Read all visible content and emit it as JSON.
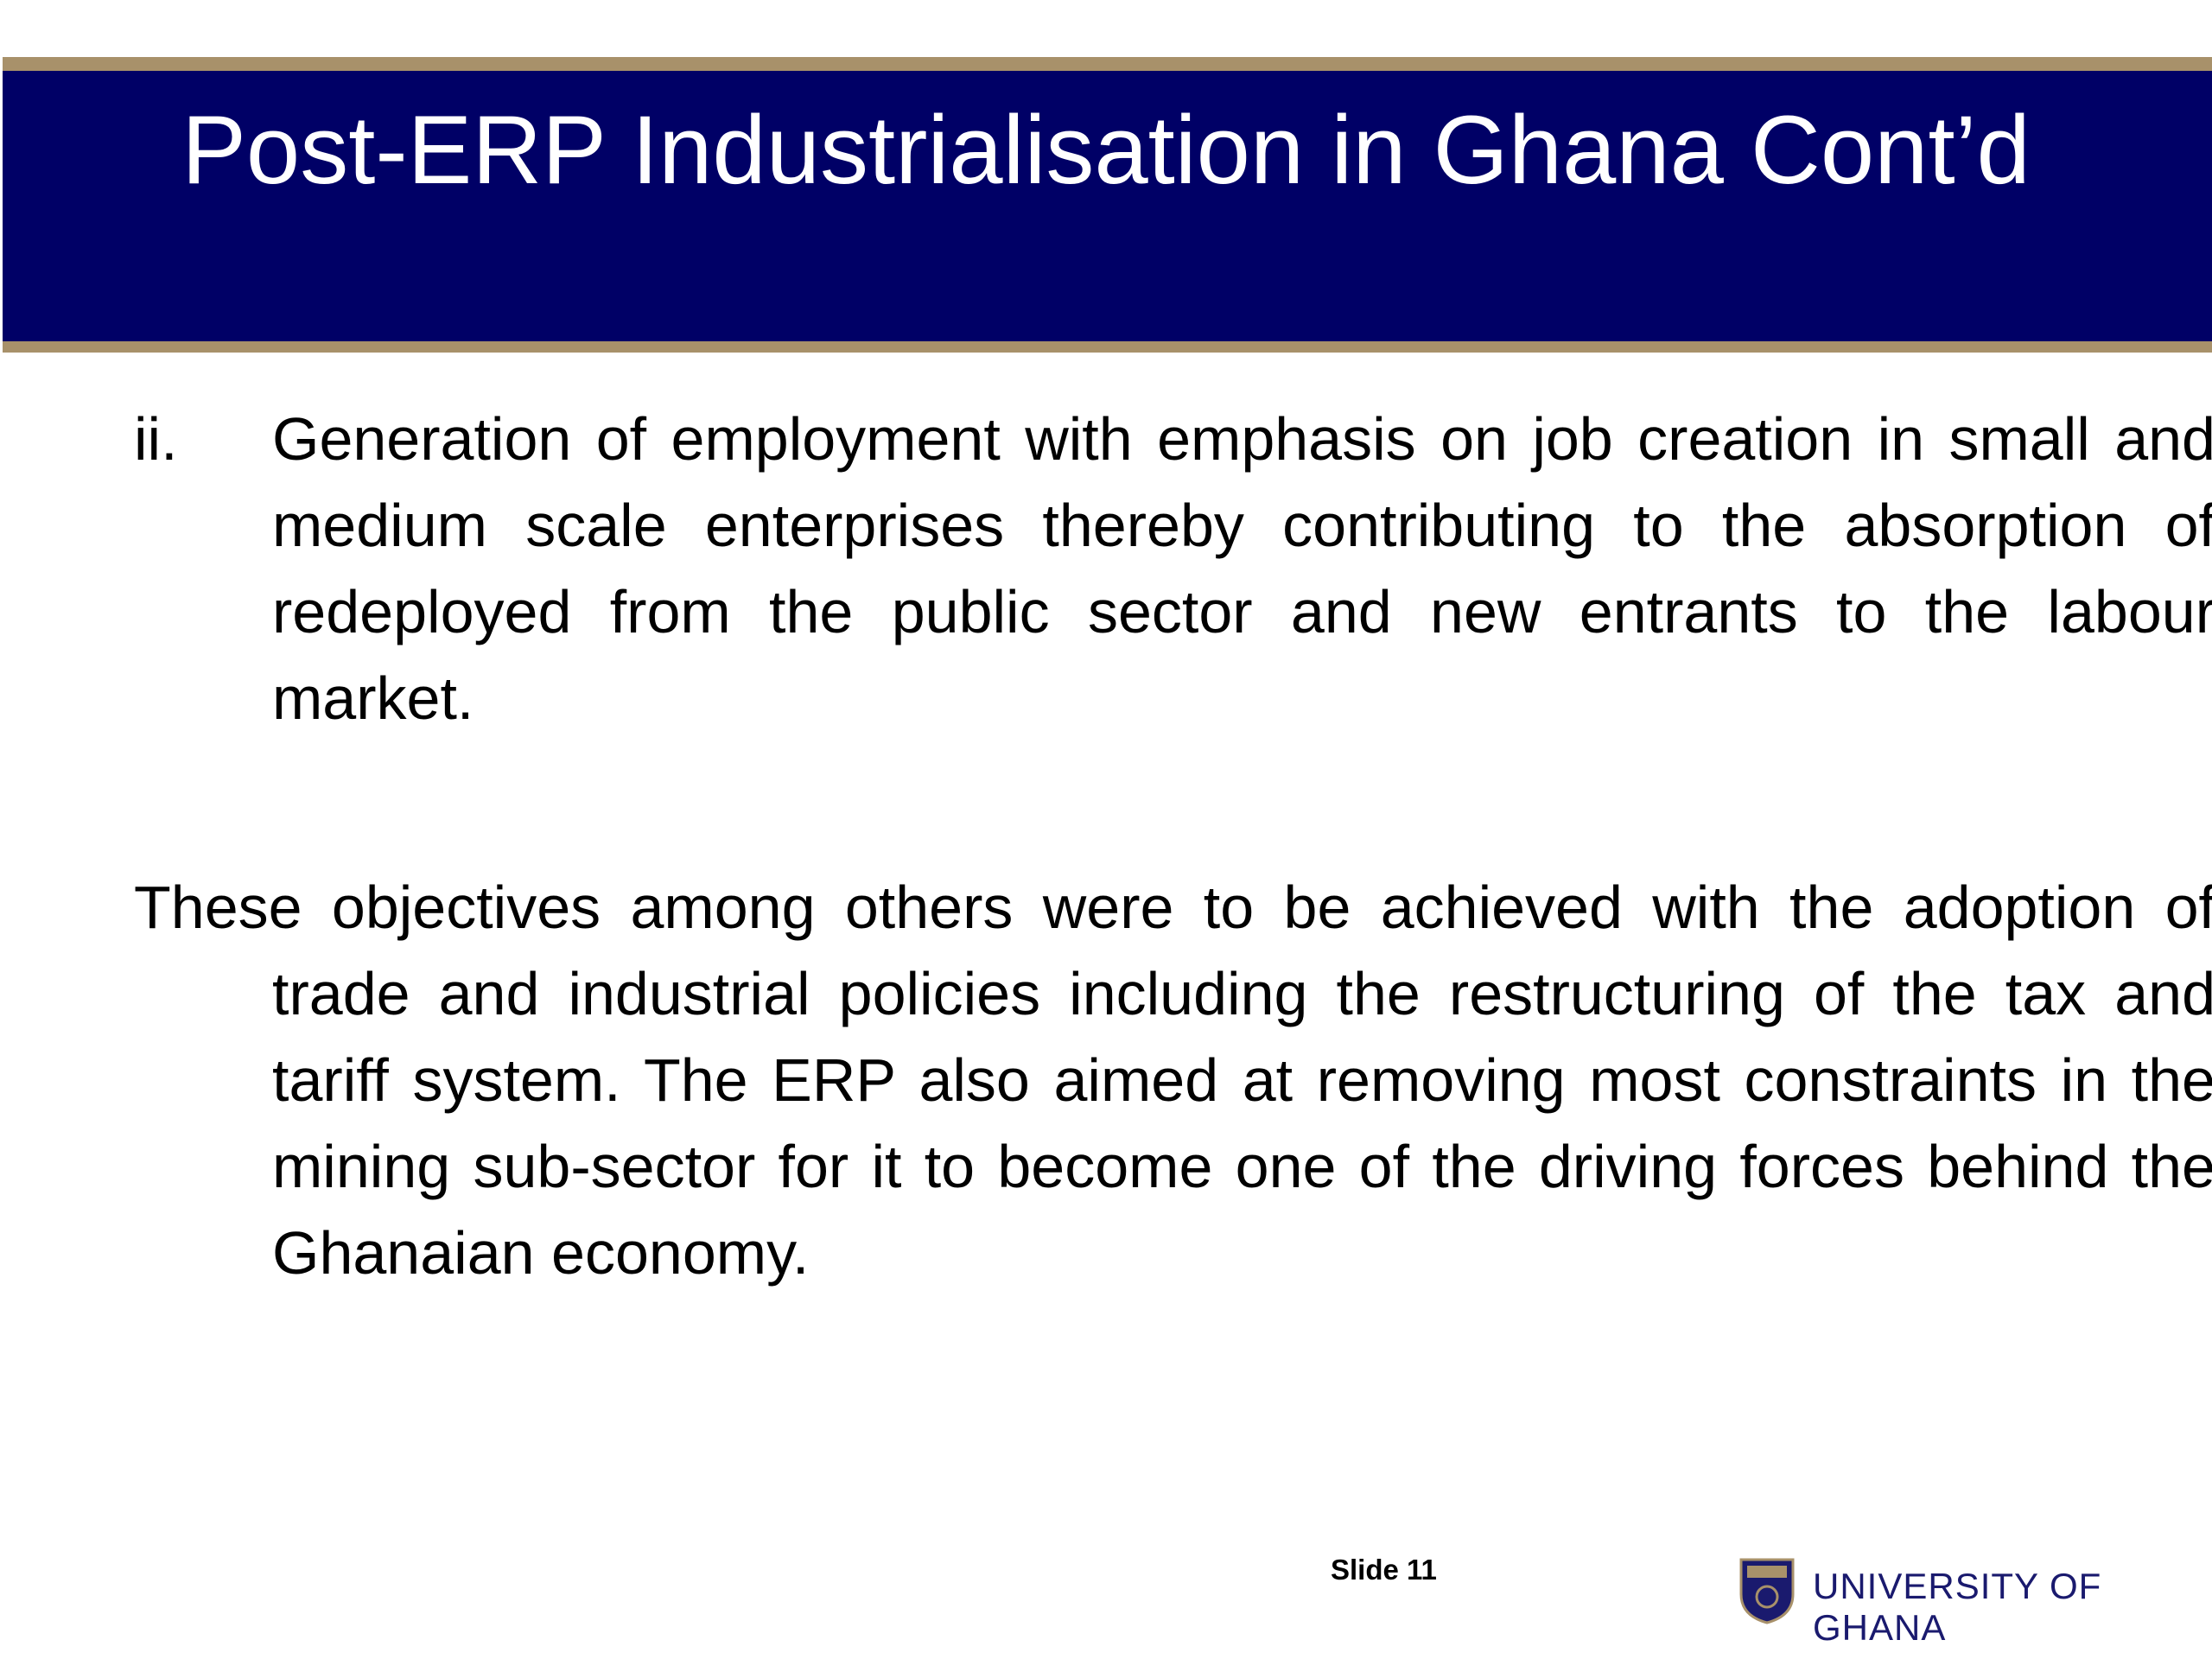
{
  "header": {
    "title": "Post-ERP Industrialisation in Ghana Cont’d"
  },
  "list": {
    "items": [
      {
        "marker": "ii.",
        "text": "Generation of employment with emphasis on job creation in small and medium scale enterprises thereby contributing to the absorption of redeployed from the public sector and new entrants to the labour market."
      }
    ]
  },
  "paragraph": {
    "text": "These objectives among others were to be achieved with the adoption of trade and industrial policies including the restructuring of the tax and tariff system. The ERP also aimed at removing most constraints in the mining sub-sector for it to become one of the driving forces behind the Ghanaian economy."
  },
  "footer": {
    "slide_label": "Slide 11",
    "brand": "UNIVERSITY OF GHANA"
  }
}
